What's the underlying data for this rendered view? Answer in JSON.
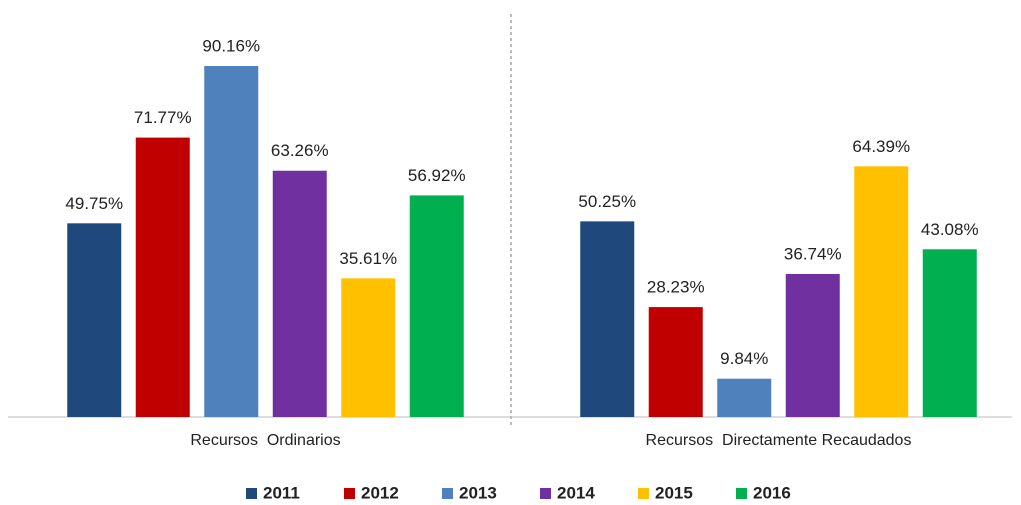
{
  "chart_data": {
    "type": "bar",
    "categories": [
      "Recursos  Ordinarios",
      "Recursos  Directamente Recaudados"
    ],
    "series": [
      {
        "name": "2011",
        "color": "#1F497D",
        "values": [
          49.75,
          50.25
        ],
        "value_labels": [
          "49.75%",
          "50.25%"
        ]
      },
      {
        "name": "2012",
        "color": "#C00000",
        "values": [
          71.77,
          28.23
        ],
        "value_labels": [
          "71.77%",
          "28.23%"
        ]
      },
      {
        "name": "2013",
        "color": "#4F81BD",
        "values": [
          90.16,
          9.84
        ],
        "value_labels": [
          "90.16%",
          "9.84%"
        ]
      },
      {
        "name": "2014",
        "color": "#7030A0",
        "values": [
          63.26,
          36.74
        ],
        "value_labels": [
          "63.26%",
          "36.74%"
        ]
      },
      {
        "name": "2015",
        "color": "#FFC000",
        "values": [
          35.61,
          64.39
        ],
        "value_labels": [
          "35.61%",
          "64.39%"
        ]
      },
      {
        "name": "2016",
        "color": "#00B050",
        "values": [
          56.92,
          43.08
        ],
        "value_labels": [
          "56.92%",
          "43.08%"
        ]
      }
    ],
    "legend": "bottom"
  }
}
